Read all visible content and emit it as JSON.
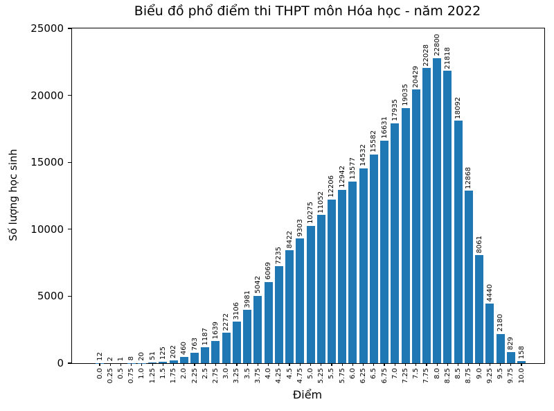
{
  "chart_data": {
    "type": "bar",
    "title": "Biểu đồ phổ điểm thi THPT môn Hóa học - năm 2022",
    "xlabel": "Điểm",
    "ylabel": "Số lượng học sinh",
    "bar_color": "#1f77b4",
    "text_color": "#000000",
    "ylim": [
      0,
      25000
    ],
    "yticks": [
      0,
      5000,
      10000,
      15000,
      20000,
      25000
    ],
    "grid": false,
    "legend": "none",
    "bar_value_labels_rotation": 90,
    "x_tick_labels_rotation": 90,
    "categories": [
      "0.0",
      "0.25",
      "0.5",
      "0.75",
      "1.0",
      "1.25",
      "1.5",
      "1.75",
      "2.0",
      "2.25",
      "2.5",
      "2.75",
      "3.0",
      "3.25",
      "3.5",
      "3.75",
      "4.0",
      "4.25",
      "4.5",
      "4.75",
      "5.0",
      "5.25",
      "5.5",
      "5.75",
      "6.0",
      "6.25",
      "6.5",
      "6.75",
      "7.0",
      "7.25",
      "7.5",
      "7.75",
      "8.0",
      "8.25",
      "8.5",
      "8.75",
      "9.0",
      "9.25",
      "9.5",
      "9.75",
      "10.0"
    ],
    "values": [
      12,
      2,
      1,
      8,
      20,
      51,
      125,
      202,
      460,
      763,
      1187,
      1639,
      2272,
      3106,
      3981,
      5042,
      6069,
      7235,
      8422,
      9303,
      10275,
      11052,
      12206,
      12942,
      13577,
      14532,
      15582,
      16631,
      17935,
      19035,
      20429,
      22028,
      22800,
      21818,
      18092,
      12868,
      8061,
      4440,
      2180,
      829,
      158
    ]
  }
}
